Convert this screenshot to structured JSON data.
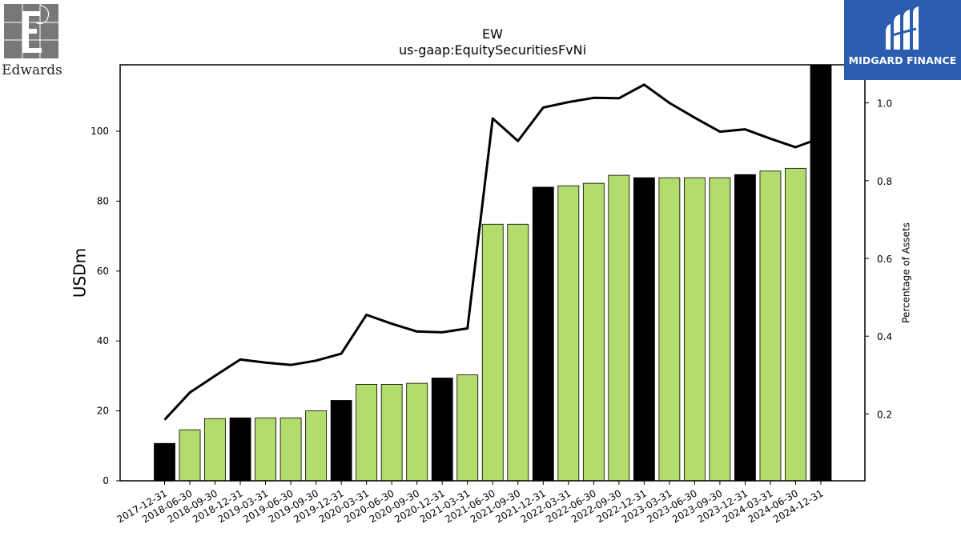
{
  "header": {
    "ticker": "EW",
    "concept": "us-gaap:EquitySecuritiesFvNi"
  },
  "logos": {
    "left_text": "Edwards",
    "right_text": "MIDGARD FINANCE"
  },
  "colors": {
    "bar_annual": "#000000",
    "bar_quarter": "#b2dc6b",
    "line": "#000000",
    "brand_blue": "#2a5db0"
  },
  "chart_data": {
    "type": "bar",
    "title": "EW",
    "subtitle": "us-gaap:EquitySecuritiesFvNi",
    "xlabel": "",
    "ylabel": "USDm",
    "y2label": "Percentage of Assets",
    "ylim": [
      0,
      119
    ],
    "y2lim": [
      0.028,
      1.098
    ],
    "yticks": [
      0,
      20,
      40,
      60,
      80,
      100
    ],
    "y2ticks": [
      0.2,
      0.4,
      0.6,
      0.8,
      1.0
    ],
    "grid": false,
    "categories": [
      "2017-12-31",
      "2018-06-30",
      "2018-09-30",
      "2018-12-31",
      "2019-03-31",
      "2019-06-30",
      "2019-09-30",
      "2019-12-31",
      "2020-03-31",
      "2020-06-30",
      "2020-09-30",
      "2020-12-31",
      "2021-03-31",
      "2021-06-30",
      "2021-09-30",
      "2021-12-31",
      "2022-03-31",
      "2022-06-30",
      "2022-09-30",
      "2022-12-31",
      "2023-03-31",
      "2023-06-30",
      "2023-09-30",
      "2023-12-31",
      "2024-03-31",
      "2024-06-30",
      "2024-12-31"
    ],
    "series": [
      {
        "kind": "bar",
        "axis": "left",
        "values": [
          10.7,
          14.6,
          17.8,
          18.0,
          18.0,
          18.0,
          20.0,
          23.0,
          27.6,
          27.6,
          27.9,
          29.4,
          30.3,
          73.4,
          73.4,
          84.0,
          84.4,
          85.1,
          87.4,
          86.7,
          86.7,
          86.7,
          86.7,
          87.6,
          88.6,
          89.4,
          119.0
        ],
        "annual": [
          true,
          false,
          false,
          true,
          false,
          false,
          false,
          true,
          false,
          false,
          false,
          true,
          false,
          false,
          false,
          true,
          false,
          false,
          false,
          true,
          false,
          false,
          false,
          true,
          false,
          false,
          true
        ]
      },
      {
        "kind": "line",
        "axis": "right",
        "values": [
          0.185,
          0.255,
          0.298,
          0.34,
          0.332,
          0.326,
          0.337,
          0.355,
          0.455,
          0.432,
          0.412,
          0.41,
          0.42,
          0.96,
          0.902,
          0.988,
          1.002,
          1.013,
          1.012,
          1.047,
          1.0,
          0.962,
          0.926,
          0.932,
          0.908,
          0.886,
          0.91
        ]
      }
    ]
  }
}
